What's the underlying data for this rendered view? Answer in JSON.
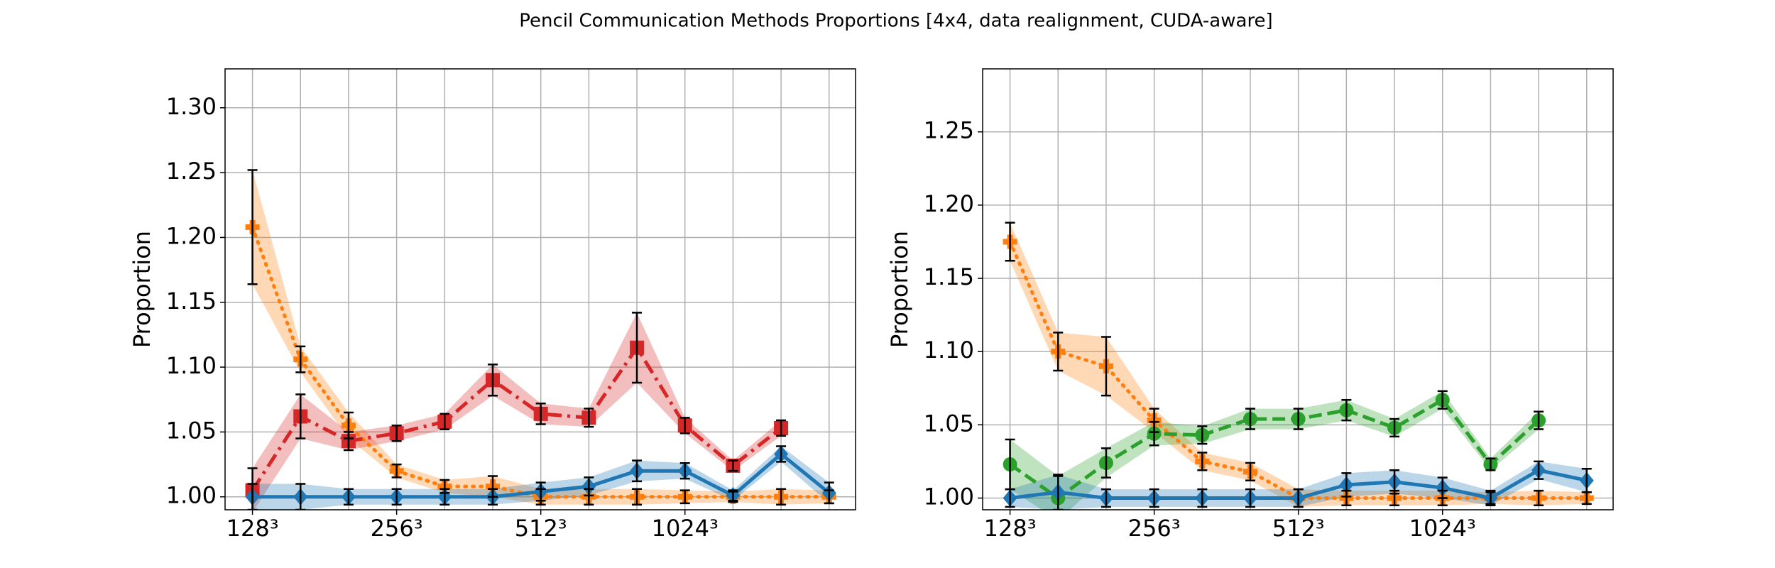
{
  "title": "Pencil Communication Methods Proportions [4x4, data realignment, CUDA-aware]",
  "chart_data": [
    {
      "type": "line",
      "ylabel": "Proportion",
      "categories": [
        "128³",
        null,
        null,
        "256³",
        null,
        null,
        "512³",
        null,
        null,
        "1024³",
        null,
        null,
        null
      ],
      "xlim": [
        -0.57,
        12.55
      ],
      "ylim": [
        0.99,
        1.33
      ],
      "yticks": [
        {
          "value": 1.0,
          "label": "1.00"
        },
        {
          "value": 1.05,
          "label": "1.05"
        },
        {
          "value": 1.1,
          "label": "1.10"
        },
        {
          "value": 1.15,
          "label": "1.15"
        },
        {
          "value": 1.2,
          "label": "1.20"
        },
        {
          "value": 1.25,
          "label": "1.25"
        },
        {
          "value": 1.3,
          "label": "1.30"
        }
      ],
      "grid": true,
      "series": [
        {
          "color": "#ff7f0e",
          "style": "dotted",
          "marker": "plus",
          "values": [
            1.208,
            1.106,
            1.055,
            1.02,
            1.008,
            1.008,
            1.0,
            1.0,
            1.0,
            1.0,
            1.0,
            1.0,
            1.0
          ],
          "errors": [
            0.044,
            0.01,
            0.01,
            0.005,
            0.005,
            0.008,
            0.006,
            0.006,
            0.006,
            0.005,
            0.004,
            0.006,
            0.005
          ]
        },
        {
          "color": "#d62728",
          "style": "dashdot",
          "marker": "square",
          "values": [
            1.005,
            1.062,
            1.043,
            1.049,
            1.058,
            1.09,
            1.064,
            1.061,
            1.115,
            1.055,
            1.024,
            1.053,
            null
          ],
          "errors": [
            0.017,
            0.017,
            0.007,
            0.006,
            0.006,
            0.012,
            0.008,
            0.007,
            0.027,
            0.006,
            0.004,
            0.006,
            null
          ]
        },
        {
          "color": "#1f77b4",
          "style": "solid",
          "marker": "diamond",
          "values": [
            1.0,
            1.0,
            1.0,
            1.0,
            1.0,
            1.0,
            1.004,
            1.008,
            1.02,
            1.02,
            1.001,
            1.033,
            1.003
          ],
          "errors": [
            0.01,
            0.01,
            0.006,
            0.006,
            0.006,
            0.006,
            0.007,
            0.007,
            0.008,
            0.006,
            0.004,
            0.006,
            0.008
          ]
        }
      ]
    },
    {
      "type": "line",
      "ylabel": "Proportion",
      "categories": [
        "128³",
        null,
        null,
        "256³",
        null,
        null,
        "512³",
        null,
        null,
        "1024³",
        null,
        null,
        null
      ],
      "xlim": [
        -0.57,
        12.55
      ],
      "ylim": [
        0.992,
        1.293
      ],
      "yticks": [
        {
          "value": 1.0,
          "label": "1.00"
        },
        {
          "value": 1.05,
          "label": "1.05"
        },
        {
          "value": 1.1,
          "label": "1.10"
        },
        {
          "value": 1.15,
          "label": "1.15"
        },
        {
          "value": 1.2,
          "label": "1.20"
        },
        {
          "value": 1.25,
          "label": "1.25"
        }
      ],
      "grid": true,
      "series": [
        {
          "color": "#ff7f0e",
          "style": "dotted",
          "marker": "plus",
          "values": [
            1.175,
            1.1,
            1.09,
            1.053,
            1.025,
            1.018,
            1.0,
            1.0,
            1.0,
            1.0,
            1.0,
            1.0,
            1.0
          ],
          "errors": [
            0.013,
            0.013,
            0.02,
            0.008,
            0.006,
            0.006,
            0.006,
            0.005,
            0.005,
            0.005,
            0.004,
            0.005,
            0.004
          ]
        },
        {
          "color": "#2ca02c",
          "style": "dashed",
          "marker": "circle",
          "values": [
            1.023,
            1.0,
            1.024,
            1.044,
            1.043,
            1.054,
            1.054,
            1.06,
            1.048,
            1.067,
            1.023,
            1.053,
            null
          ],
          "errors": [
            0.017,
            0.015,
            0.01,
            0.008,
            0.006,
            0.007,
            0.007,
            0.007,
            0.006,
            0.006,
            0.004,
            0.006,
            null
          ]
        },
        {
          "color": "#1f77b4",
          "style": "solid",
          "marker": "diamond",
          "values": [
            1.0,
            1.004,
            1.0,
            1.0,
            1.0,
            1.0,
            1.0,
            1.009,
            1.011,
            1.007,
            1.0,
            1.019,
            1.012
          ],
          "errors": [
            0.006,
            0.012,
            0.006,
            0.006,
            0.006,
            0.006,
            0.006,
            0.008,
            0.008,
            0.007,
            0.005,
            0.006,
            0.008
          ]
        }
      ]
    }
  ]
}
